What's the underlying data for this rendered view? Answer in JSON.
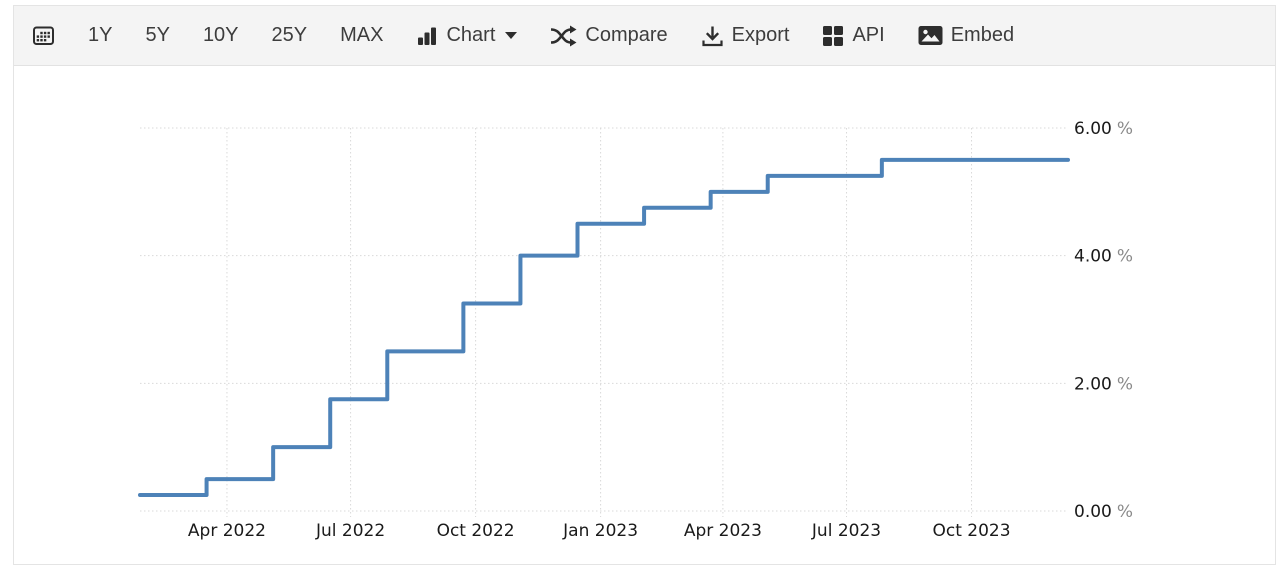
{
  "toolbar": {
    "ranges": [
      {
        "label": "1Y"
      },
      {
        "label": "5Y"
      },
      {
        "label": "10Y"
      },
      {
        "label": "25Y"
      },
      {
        "label": "MAX"
      }
    ],
    "chart_menu": {
      "label": "Chart"
    },
    "actions": {
      "compare": {
        "label": "Compare"
      },
      "export": {
        "label": "Export"
      },
      "api": {
        "label": "API"
      },
      "embed": {
        "label": "Embed"
      }
    }
  },
  "chart_data": {
    "type": "line",
    "step": true,
    "grid": "dotted",
    "legend": "none",
    "title": "",
    "xlabel": "",
    "ylabel": "",
    "ylim": [
      0,
      6
    ],
    "x_range": [
      "2022-01-27",
      "2023-12-11"
    ],
    "y_unit": "%",
    "line_color": "#4d82b8",
    "grid_color": "#d9d9d9",
    "axis_text_color": "#1a1a1a",
    "unit_text_color": "#8a8a8a",
    "y_ticks": [
      {
        "value": 0,
        "label": "0.00"
      },
      {
        "value": 2,
        "label": "2.00"
      },
      {
        "value": 4,
        "label": "4.00"
      },
      {
        "value": 6,
        "label": "6.00"
      }
    ],
    "x_ticks": [
      {
        "date": "2022-04-01",
        "label": "Apr 2022"
      },
      {
        "date": "2022-07-01",
        "label": "Jul 2022"
      },
      {
        "date": "2022-10-01",
        "label": "Oct 2022"
      },
      {
        "date": "2023-01-01",
        "label": "Jan 2023"
      },
      {
        "date": "2023-04-01",
        "label": "Apr 2023"
      },
      {
        "date": "2023-07-01",
        "label": "Jul 2023"
      },
      {
        "date": "2023-10-01",
        "label": "Oct 2023"
      }
    ],
    "series": [
      {
        "points": [
          [
            "2022-01-27",
            0.25
          ],
          [
            "2022-03-17",
            0.5
          ],
          [
            "2022-05-05",
            1.0
          ],
          [
            "2022-06-16",
            1.75
          ],
          [
            "2022-07-28",
            2.5
          ],
          [
            "2022-09-22",
            3.25
          ],
          [
            "2022-11-03",
            4.0
          ],
          [
            "2022-12-15",
            4.5
          ],
          [
            "2023-02-02",
            4.75
          ],
          [
            "2023-03-23",
            5.0
          ],
          [
            "2023-05-04",
            5.25
          ],
          [
            "2023-07-27",
            5.5
          ],
          [
            "2023-12-11",
            5.5
          ]
        ]
      }
    ]
  }
}
